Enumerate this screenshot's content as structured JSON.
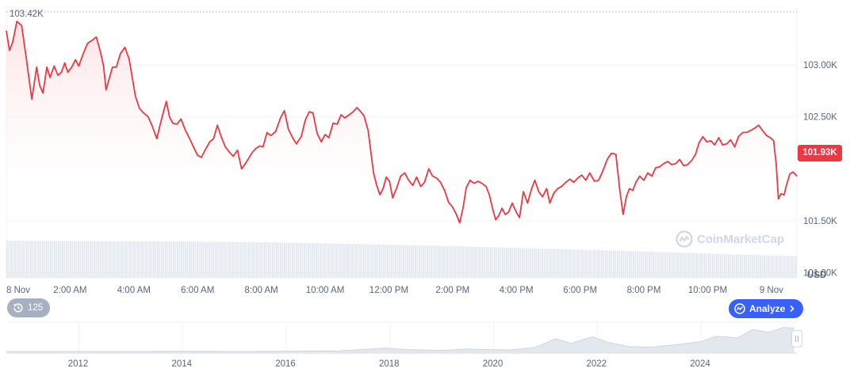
{
  "colors": {
    "price_line": "#ea3943",
    "fill_top": "#fde3e4",
    "volume": "#e3e7ee",
    "grid": "#eff2f5",
    "analyze_bg": "#3861fb",
    "history_bg": "#a6b0c3"
  },
  "header": {
    "max_price_label": "103.42K"
  },
  "current_price": "101.93K",
  "currency_label": "USD",
  "watermark": "CoinMarketCap",
  "history_button": {
    "icon": "history-icon",
    "label": "125"
  },
  "analyze_button": {
    "icon": "analyze-icon",
    "label": "Analyze"
  },
  "chart_data": {
    "type": "line",
    "x_ticks": [
      "8 Nov",
      "2:00 AM",
      "4:00 AM",
      "6:00 AM",
      "8:00 AM",
      "10:00 AM",
      "12:00 PM",
      "2:00 PM",
      "4:00 PM",
      "6:00 PM",
      "8:00 PM",
      "10:00 PM",
      "9 Nov"
    ],
    "y_ticks": [
      "103.00K",
      "102.50K",
      "101.50K",
      "101.00K"
    ],
    "ylim": [
      100.95,
      103.55
    ],
    "xlim_hours": [
      0,
      24.8
    ],
    "grid": true,
    "price_series": [
      [
        0.0,
        103.33
      ],
      [
        0.1,
        103.14
      ],
      [
        0.2,
        103.22
      ],
      [
        0.33,
        103.42
      ],
      [
        0.48,
        103.38
      ],
      [
        0.62,
        103.08
      ],
      [
        0.72,
        102.85
      ],
      [
        0.8,
        102.67
      ],
      [
        0.95,
        102.98
      ],
      [
        1.05,
        102.8
      ],
      [
        1.15,
        102.73
      ],
      [
        1.27,
        102.98
      ],
      [
        1.37,
        102.88
      ],
      [
        1.5,
        102.99
      ],
      [
        1.62,
        102.9
      ],
      [
        1.73,
        102.93
      ],
      [
        1.83,
        103.02
      ],
      [
        1.93,
        102.93
      ],
      [
        2.05,
        102.98
      ],
      [
        2.17,
        103.05
      ],
      [
        2.27,
        102.99
      ],
      [
        2.4,
        103.1
      ],
      [
        2.55,
        103.21
      ],
      [
        2.7,
        103.24
      ],
      [
        2.82,
        103.27
      ],
      [
        2.95,
        103.13
      ],
      [
        3.05,
        102.99
      ],
      [
        3.13,
        102.76
      ],
      [
        3.22,
        102.86
      ],
      [
        3.33,
        102.98
      ],
      [
        3.45,
        102.98
      ],
      [
        3.58,
        103.11
      ],
      [
        3.72,
        103.17
      ],
      [
        3.85,
        103.06
      ],
      [
        3.95,
        102.88
      ],
      [
        4.05,
        102.7
      ],
      [
        4.18,
        102.58
      ],
      [
        4.3,
        102.54
      ],
      [
        4.45,
        102.5
      ],
      [
        4.58,
        102.41
      ],
      [
        4.72,
        102.29
      ],
      [
        4.82,
        102.42
      ],
      [
        4.92,
        102.54
      ],
      [
        5.02,
        102.65
      ],
      [
        5.12,
        102.5
      ],
      [
        5.22,
        102.44
      ],
      [
        5.35,
        102.43
      ],
      [
        5.48,
        102.48
      ],
      [
        5.62,
        102.37
      ],
      [
        5.75,
        102.29
      ],
      [
        5.87,
        102.21
      ],
      [
        6.0,
        102.13
      ],
      [
        6.12,
        102.11
      ],
      [
        6.25,
        102.19
      ],
      [
        6.38,
        102.26
      ],
      [
        6.5,
        102.29
      ],
      [
        6.62,
        102.42
      ],
      [
        6.75,
        102.3
      ],
      [
        6.87,
        102.21
      ],
      [
        7.0,
        102.16
      ],
      [
        7.12,
        102.12
      ],
      [
        7.25,
        102.18
      ],
      [
        7.38,
        102.0
      ],
      [
        7.5,
        102.05
      ],
      [
        7.62,
        102.11
      ],
      [
        7.72,
        102.16
      ],
      [
        7.84,
        102.2
      ],
      [
        7.95,
        102.22
      ],
      [
        8.05,
        102.21
      ],
      [
        8.18,
        102.35
      ],
      [
        8.3,
        102.32
      ],
      [
        8.45,
        102.36
      ],
      [
        8.6,
        102.49
      ],
      [
        8.72,
        102.56
      ],
      [
        8.85,
        102.38
      ],
      [
        8.98,
        102.3
      ],
      [
        9.1,
        102.24
      ],
      [
        9.25,
        102.31
      ],
      [
        9.38,
        102.47
      ],
      [
        9.5,
        102.55
      ],
      [
        9.62,
        102.54
      ],
      [
        9.75,
        102.34
      ],
      [
        9.88,
        102.26
      ],
      [
        10.0,
        102.33
      ],
      [
        10.12,
        102.3
      ],
      [
        10.25,
        102.44
      ],
      [
        10.38,
        102.43
      ],
      [
        10.5,
        102.52
      ],
      [
        10.62,
        102.49
      ],
      [
        10.75,
        102.52
      ],
      [
        10.88,
        102.55
      ],
      [
        11.0,
        102.59
      ],
      [
        11.12,
        102.55
      ],
      [
        11.22,
        102.51
      ],
      [
        11.35,
        102.37
      ],
      [
        11.42,
        102.2
      ],
      [
        11.52,
        101.96
      ],
      [
        11.62,
        101.84
      ],
      [
        11.72,
        101.75
      ],
      [
        11.82,
        101.81
      ],
      [
        11.92,
        101.92
      ],
      [
        12.02,
        101.88
      ],
      [
        12.12,
        101.72
      ],
      [
        12.25,
        101.82
      ],
      [
        12.37,
        101.93
      ],
      [
        12.5,
        101.96
      ],
      [
        12.62,
        101.89
      ],
      [
        12.75,
        101.84
      ],
      [
        12.87,
        101.92
      ],
      [
        13.0,
        101.83
      ],
      [
        13.12,
        101.87
      ],
      [
        13.25,
        102.0
      ],
      [
        13.37,
        101.93
      ],
      [
        13.5,
        101.91
      ],
      [
        13.62,
        101.87
      ],
      [
        13.75,
        101.79
      ],
      [
        13.87,
        101.68
      ],
      [
        14.0,
        101.63
      ],
      [
        14.12,
        101.56
      ],
      [
        14.22,
        101.48
      ],
      [
        14.32,
        101.61
      ],
      [
        14.43,
        101.82
      ],
      [
        14.55,
        101.89
      ],
      [
        14.67,
        101.86
      ],
      [
        14.8,
        101.88
      ],
      [
        14.92,
        101.86
      ],
      [
        15.05,
        101.83
      ],
      [
        15.15,
        101.75
      ],
      [
        15.25,
        101.62
      ],
      [
        15.35,
        101.51
      ],
      [
        15.45,
        101.55
      ],
      [
        15.55,
        101.62
      ],
      [
        15.65,
        101.56
      ],
      [
        15.75,
        101.58
      ],
      [
        15.87,
        101.67
      ],
      [
        16.0,
        101.58
      ],
      [
        16.1,
        101.53
      ],
      [
        16.22,
        101.78
      ],
      [
        16.35,
        101.67
      ],
      [
        16.47,
        101.8
      ],
      [
        16.58,
        101.89
      ],
      [
        16.7,
        101.78
      ],
      [
        16.82,
        101.73
      ],
      [
        16.95,
        101.81
      ],
      [
        17.05,
        101.67
      ],
      [
        17.18,
        101.77
      ],
      [
        17.3,
        101.81
      ],
      [
        17.42,
        101.83
      ],
      [
        17.55,
        101.87
      ],
      [
        17.68,
        101.9
      ],
      [
        17.8,
        101.87
      ],
      [
        17.92,
        101.91
      ],
      [
        18.05,
        101.94
      ],
      [
        18.18,
        101.89
      ],
      [
        18.3,
        101.96
      ],
      [
        18.45,
        101.88
      ],
      [
        18.58,
        101.89
      ],
      [
        18.7,
        101.97
      ],
      [
        18.85,
        102.09
      ],
      [
        18.98,
        102.15
      ],
      [
        19.12,
        102.14
      ],
      [
        19.25,
        101.78
      ],
      [
        19.35,
        101.56
      ],
      [
        19.45,
        101.73
      ],
      [
        19.55,
        101.81
      ],
      [
        19.65,
        101.79
      ],
      [
        19.75,
        101.87
      ],
      [
        19.87,
        101.93
      ],
      [
        20.0,
        101.89
      ],
      [
        20.12,
        101.96
      ],
      [
        20.25,
        101.93
      ],
      [
        20.37,
        102.01
      ],
      [
        20.5,
        102.02
      ],
      [
        20.62,
        102.05
      ],
      [
        20.75,
        102.07
      ],
      [
        20.87,
        102.04
      ],
      [
        21.0,
        102.05
      ],
      [
        21.12,
        102.09
      ],
      [
        21.25,
        102.03
      ],
      [
        21.37,
        102.04
      ],
      [
        21.5,
        102.08
      ],
      [
        21.62,
        102.14
      ],
      [
        21.73,
        102.25
      ],
      [
        21.85,
        102.31
      ],
      [
        21.97,
        102.26
      ],
      [
        22.1,
        102.27
      ],
      [
        22.22,
        102.23
      ],
      [
        22.35,
        102.3
      ],
      [
        22.47,
        102.23
      ],
      [
        22.6,
        102.24
      ],
      [
        22.72,
        102.28
      ],
      [
        22.85,
        102.21
      ],
      [
        22.97,
        102.31
      ],
      [
        23.1,
        102.35
      ],
      [
        23.22,
        102.35
      ],
      [
        23.35,
        102.37
      ],
      [
        23.47,
        102.39
      ],
      [
        23.6,
        102.42
      ],
      [
        23.72,
        102.37
      ],
      [
        23.85,
        102.32
      ],
      [
        23.97,
        102.3
      ],
      [
        24.07,
        102.27
      ],
      [
        24.15,
        102.05
      ],
      [
        24.22,
        101.71
      ],
      [
        24.3,
        101.76
      ],
      [
        24.4,
        101.75
      ],
      [
        24.48,
        101.85
      ],
      [
        24.58,
        101.95
      ],
      [
        24.68,
        101.97
      ],
      [
        24.8,
        101.93
      ]
    ],
    "volume_relative": [
      1.0,
      0.99,
      0.98,
      0.97,
      0.95,
      0.92,
      0.88,
      0.84,
      0.79,
      0.74,
      0.69,
      0.63,
      0.58
    ],
    "navigator": {
      "x_ticks": [
        "2012",
        "2014",
        "2016",
        "2018",
        "2020",
        "2022",
        "2024"
      ],
      "series": [
        [
          2010.6,
          0.0
        ],
        [
          2012.0,
          0.0
        ],
        [
          2013.0,
          0.0
        ],
        [
          2014.0,
          0.01
        ],
        [
          2015.0,
          0.0
        ],
        [
          2016.0,
          0.01
        ],
        [
          2017.0,
          0.02
        ],
        [
          2017.9,
          0.14
        ],
        [
          2018.3,
          0.08
        ],
        [
          2019.0,
          0.04
        ],
        [
          2019.5,
          0.1
        ],
        [
          2020.0,
          0.07
        ],
        [
          2020.3,
          0.06
        ],
        [
          2020.8,
          0.16
        ],
        [
          2021.2,
          0.52
        ],
        [
          2021.5,
          0.33
        ],
        [
          2021.9,
          0.6
        ],
        [
          2022.2,
          0.38
        ],
        [
          2022.6,
          0.2
        ],
        [
          2023.0,
          0.17
        ],
        [
          2023.5,
          0.27
        ],
        [
          2024.0,
          0.4
        ],
        [
          2024.3,
          0.62
        ],
        [
          2024.7,
          0.55
        ],
        [
          2025.0,
          0.9
        ],
        [
          2025.3,
          0.78
        ],
        [
          2025.6,
          0.98
        ],
        [
          2025.8,
          0.95
        ]
      ]
    }
  }
}
